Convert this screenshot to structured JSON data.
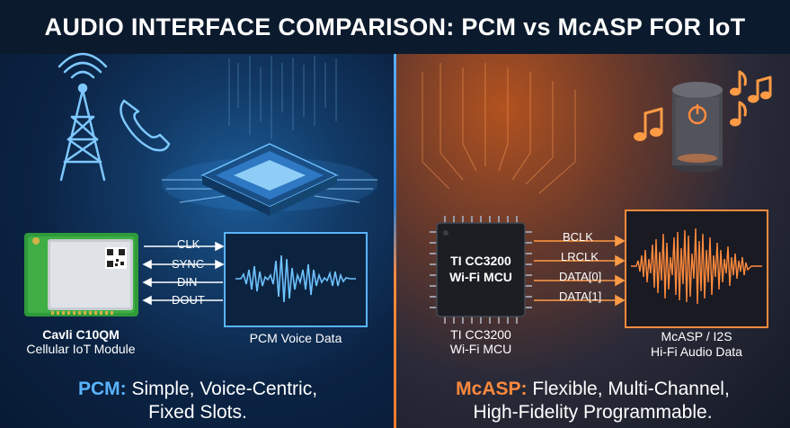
{
  "title": "AUDIO INTERFACE COMPARISON: PCM vs McASP FOR IoT",
  "left": {
    "module": {
      "name": "Cavli C10QM",
      "subtitle": "Cellular IoT Module"
    },
    "signals": [
      "CLK",
      "SYNC",
      "DIN",
      "DOUT"
    ],
    "waveform_label": "PCM Voice Data",
    "caption_keyword": "PCM:",
    "caption_line1": "Simple, Voice-Centric,",
    "caption_line2": "Fixed Slots.",
    "accent": "#5ab4ff",
    "icons": [
      "cell-tower-icon",
      "phone-icon",
      "chip-icon"
    ]
  },
  "right": {
    "chip_line1": "TI CC3200",
    "chip_line2": "Wi-Fi MCU",
    "chip_label_line1": "TI CC3200",
    "chip_label_line2": "Wi-Fi MCU",
    "signals": [
      "BCLK",
      "LRCLK",
      "DATA[0]",
      "DATA[1]"
    ],
    "waveform_label_line1": "McASP / I2S",
    "waveform_label_line2": "Hi-Fi Audio Data",
    "caption_keyword": "McASP:",
    "caption_line1": "Flexible, Multi-Channel,",
    "caption_line2": "High-Fidelity Programmable.",
    "accent": "#ff8a3d",
    "icons": [
      "smart-speaker-icon",
      "music-note-icon"
    ]
  }
}
